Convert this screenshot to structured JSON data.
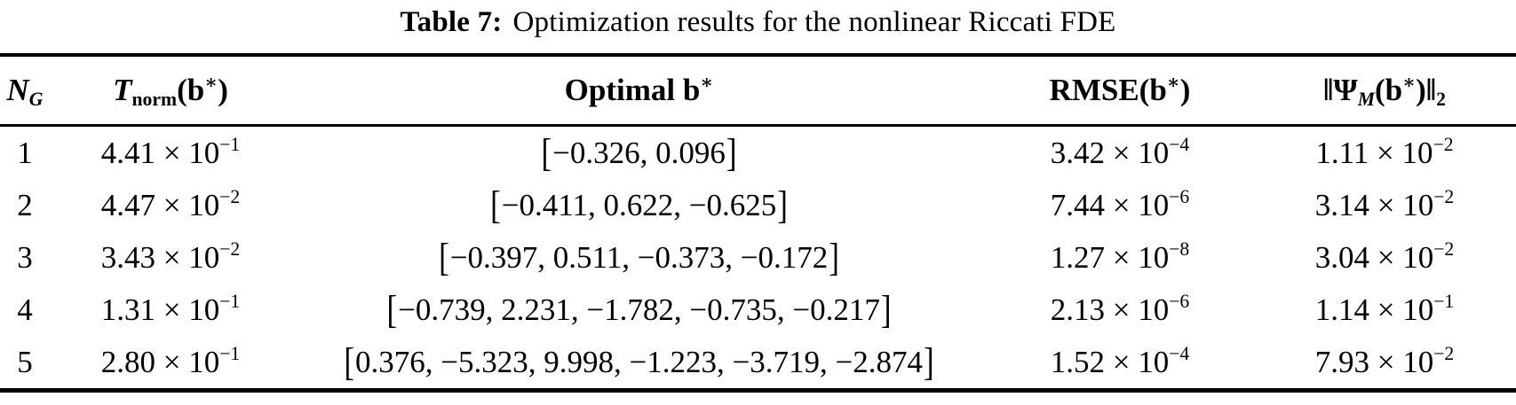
{
  "colors": {
    "text": "#000000",
    "background": "#ffffff",
    "rule": "#000000"
  },
  "title": {
    "label": "Table 7:",
    "text": "Optimization results for the nonlinear Riccati FDE"
  },
  "table": {
    "headers": {
      "ng": {
        "main": "N",
        "sub": "G"
      },
      "tnorm": {
        "main": "T",
        "sub": "norm",
        "open": "(",
        "vec": "b",
        "star": "∗",
        "close": ")"
      },
      "optimal": {
        "pre": "Optimal ",
        "vec": "b",
        "star": "∗"
      },
      "rmse": {
        "main": "RMSE",
        "open": "(",
        "vec": "b",
        "star": "∗",
        "close": ")"
      },
      "psi": {
        "norm_open": "‖",
        "main": "Ψ",
        "sub": "M",
        "open": "(",
        "vec": "b",
        "star": "∗",
        "close": ")",
        "norm_close": "‖",
        "norm_sub": "2"
      }
    },
    "rows": [
      {
        "ng": "1",
        "tnorm": {
          "base": "4.41 × 10",
          "exp": "−1"
        },
        "optimal": {
          "open": "[",
          "body": "−0.326, 0.096",
          "close": "]"
        },
        "rmse": {
          "base": "3.42 × 10",
          "exp": "−4"
        },
        "psi": {
          "base": "1.11 × 10",
          "exp": "−2"
        }
      },
      {
        "ng": "2",
        "tnorm": {
          "base": "4.47 × 10",
          "exp": "−2"
        },
        "optimal": {
          "open": "[",
          "body": "−0.411, 0.622, −0.625",
          "close": "]"
        },
        "rmse": {
          "base": "7.44 × 10",
          "exp": "−6"
        },
        "psi": {
          "base": "3.14 × 10",
          "exp": "−2"
        }
      },
      {
        "ng": "3",
        "tnorm": {
          "base": "3.43 × 10",
          "exp": "−2"
        },
        "optimal": {
          "open": "[",
          "body": "−0.397, 0.511, −0.373, −0.172",
          "close": "]"
        },
        "rmse": {
          "base": "1.27 × 10",
          "exp": "−8"
        },
        "psi": {
          "base": "3.04 × 10",
          "exp": "−2"
        }
      },
      {
        "ng": "4",
        "tnorm": {
          "base": "1.31 × 10",
          "exp": "−1"
        },
        "optimal": {
          "open": "[",
          "body": "−0.739, 2.231, −1.782, −0.735, −0.217",
          "close": "]"
        },
        "rmse": {
          "base": "2.13 × 10",
          "exp": "−6"
        },
        "psi": {
          "base": "1.14 × 10",
          "exp": "−1"
        }
      },
      {
        "ng": "5",
        "tnorm": {
          "base": "2.80 × 10",
          "exp": "−1"
        },
        "optimal": {
          "open": "[",
          "body": "0.376, −5.323, 9.998, −1.223, −3.719, −2.874",
          "close": "]"
        },
        "rmse": {
          "base": "1.52 × 10",
          "exp": "−4"
        },
        "psi": {
          "base": "7.93 × 10",
          "exp": "−2"
        }
      }
    ]
  }
}
